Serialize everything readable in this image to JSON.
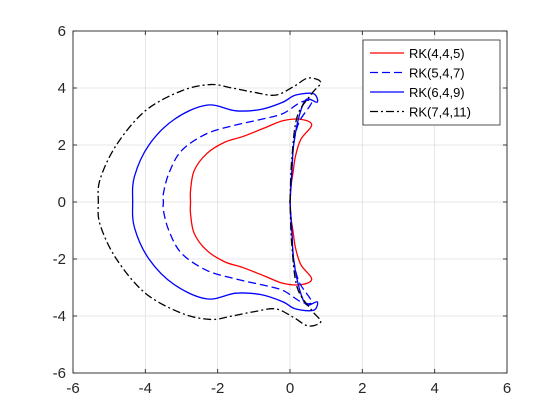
{
  "chart_data": {
    "type": "line",
    "title": "",
    "xlabel": "",
    "ylabel": "",
    "xlim": [
      -6,
      6
    ],
    "ylim": [
      -6,
      6
    ],
    "xticks": [
      -6,
      -4,
      -2,
      0,
      2,
      4,
      6
    ],
    "yticks": [
      -6,
      -4,
      -2,
      0,
      2,
      4,
      6
    ],
    "xtick_labels": [
      "-6",
      "-4",
      "-2",
      "0",
      "2",
      "4",
      "6"
    ],
    "ytick_labels": [
      "-6",
      "-4",
      "-2",
      "0",
      "2",
      "4",
      "6"
    ],
    "grid": true,
    "legend_position": "top-right",
    "series": [
      {
        "name": "RK(4,4,5)",
        "color": "#ff0000",
        "dash": "solid",
        "points": [
          [
            0.0,
            0.0
          ],
          [
            0.02,
            0.5
          ],
          [
            0.08,
            1.0
          ],
          [
            0.15,
            1.6
          ],
          [
            0.3,
            2.2
          ],
          [
            0.6,
            2.7
          ],
          [
            0.3,
            2.9
          ],
          [
            -0.2,
            2.85
          ],
          [
            -0.7,
            2.6
          ],
          [
            -1.3,
            2.3
          ],
          [
            -1.8,
            2.1
          ],
          [
            -2.3,
            1.7
          ],
          [
            -2.65,
            1.1
          ],
          [
            -2.75,
            0.4
          ],
          [
            -2.75,
            0.0
          ]
        ]
      },
      {
        "name": "RK(5,4,7)",
        "color": "#0000ff",
        "dash": "dashed",
        "points": [
          [
            0.0,
            0.0
          ],
          [
            0.05,
            1.0
          ],
          [
            0.1,
            2.0
          ],
          [
            0.25,
            2.8
          ],
          [
            0.6,
            3.5
          ],
          [
            0.3,
            3.5
          ],
          [
            -0.2,
            3.1
          ],
          [
            -0.8,
            2.9
          ],
          [
            -1.5,
            2.7
          ],
          [
            -2.3,
            2.4
          ],
          [
            -3.0,
            1.8
          ],
          [
            -3.35,
            1.0
          ],
          [
            -3.5,
            0.3
          ],
          [
            -3.5,
            0.0
          ]
        ]
      },
      {
        "name": "RK(6,4,9)",
        "color": "#0000ff",
        "dash": "solid",
        "points": [
          [
            0.0,
            0.0
          ],
          [
            0.05,
            1.0
          ],
          [
            0.1,
            2.0
          ],
          [
            0.25,
            3.0
          ],
          [
            0.45,
            3.6
          ],
          [
            0.75,
            3.5
          ],
          [
            0.65,
            3.8
          ],
          [
            0.15,
            3.75
          ],
          [
            -0.2,
            3.5
          ],
          [
            -0.8,
            3.25
          ],
          [
            -1.5,
            3.2
          ],
          [
            -2.3,
            3.4
          ],
          [
            -3.2,
            2.9
          ],
          [
            -3.9,
            2.0
          ],
          [
            -4.3,
            0.9
          ],
          [
            -4.35,
            0.0
          ]
        ]
      },
      {
        "name": "RK(7,4,11)",
        "color": "#000000",
        "dash": "dashdot",
        "points": [
          [
            0.0,
            0.0
          ],
          [
            0.05,
            1.5
          ],
          [
            0.2,
            3.0
          ],
          [
            0.6,
            3.8
          ],
          [
            0.85,
            4.2
          ],
          [
            0.5,
            4.35
          ],
          [
            0.1,
            4.05
          ],
          [
            -0.4,
            3.75
          ],
          [
            -1.0,
            3.85
          ],
          [
            -1.6,
            4.0
          ],
          [
            -2.2,
            4.12
          ],
          [
            -3.0,
            3.9
          ],
          [
            -4.0,
            3.2
          ],
          [
            -4.8,
            2.0
          ],
          [
            -5.25,
            0.8
          ],
          [
            -5.3,
            0.0
          ]
        ]
      }
    ]
  }
}
